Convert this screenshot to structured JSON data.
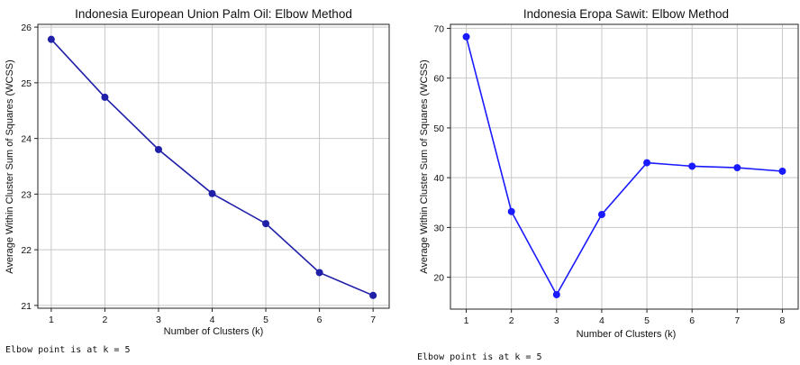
{
  "chart_data": [
    {
      "type": "line",
      "title": "Indonesia European Union Palm Oil: Elbow Method",
      "xlabel": "Number of Clusters (k)",
      "ylabel": "Average Within Cluster Sum of Squares (WCSS)",
      "x": [
        1,
        2,
        3,
        4,
        5,
        6,
        7
      ],
      "xticks": [
        "1",
        "2",
        "3",
        "4",
        "5",
        "6",
        "7"
      ],
      "yticks": [
        "21",
        "22",
        "23",
        "24",
        "25",
        "26"
      ],
      "xlim": [
        0.75,
        7.3
      ],
      "ylim": [
        20.95,
        26.05
      ],
      "grid": true,
      "series": [
        {
          "values": [
            25.78,
            24.74,
            23.8,
            23.01,
            22.47,
            21.59,
            21.18
          ],
          "color": "#1f1fa8"
        }
      ]
    },
    {
      "type": "line",
      "title": "Indonesia Eropa Sawit: Elbow Method",
      "xlabel": "Number of Clusters (k)",
      "ylabel": "Average Within Cluster Sum of Squares (WCSS)",
      "x": [
        1,
        2,
        3,
        4,
        5,
        6,
        7,
        8
      ],
      "xticks": [
        "1",
        "2",
        "3",
        "4",
        "5",
        "6",
        "7",
        "8"
      ],
      "yticks": [
        "20",
        "30",
        "40",
        "50",
        "60",
        "70"
      ],
      "xlim": [
        0.65,
        8.35
      ],
      "ylim": [
        13.6,
        70.8
      ],
      "grid": true,
      "series": [
        {
          "values": [
            68.3,
            33.2,
            16.5,
            32.6,
            43.0,
            42.3,
            42.0,
            41.3
          ],
          "color": "#1a1aff"
        }
      ]
    }
  ],
  "notes": [
    "Elbow point is at k = 5",
    "Elbow point is at k = 5"
  ]
}
